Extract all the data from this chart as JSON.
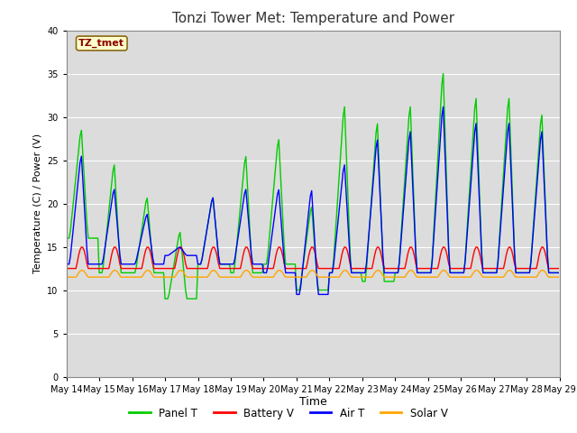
{
  "title": "Tonzi Tower Met: Temperature and Power",
  "xlabel": "Time",
  "ylabel": "Temperature (C) / Power (V)",
  "ylim": [
    0,
    40
  ],
  "yticks": [
    0,
    5,
    10,
    15,
    20,
    25,
    30,
    35,
    40
  ],
  "annotation": "TZ_tmet",
  "annotation_color": "#8B0000",
  "annotation_bg": "#FFFFCC",
  "annotation_edge": "#8B6914",
  "x_tick_labels": [
    "May 14",
    "May 15",
    "May 16",
    "May 17",
    "May 18",
    "May 19",
    "May 20",
    "May 21",
    "May 22",
    "May 23",
    "May 24",
    "May 25",
    "May 26",
    "May 27",
    "May 28",
    "May 29"
  ],
  "panel_T_color": "#00CC00",
  "battery_V_color": "#FF0000",
  "air_T_color": "#0000FF",
  "solar_V_color": "#FFA500",
  "fig_bg_color": "#FFFFFF",
  "plot_bg_color": "#DCDCDC",
  "grid_color": "#FFFFFF",
  "line_width": 1.0,
  "panel_T_peaks": [
    29,
    25,
    21,
    17,
    21,
    26,
    28,
    20,
    32,
    30,
    32,
    36,
    33,
    33,
    31
  ],
  "panel_T_troughs": [
    16,
    12,
    12,
    9,
    13,
    12,
    13,
    10,
    12,
    11,
    12,
    12,
    12,
    12,
    12
  ],
  "air_T_peaks": [
    26,
    22,
    19,
    15,
    21,
    22,
    22,
    22,
    25,
    28,
    29,
    32,
    30,
    30,
    29
  ],
  "air_T_troughs": [
    13,
    13,
    13,
    14,
    13,
    13,
    12,
    9.5,
    12,
    12,
    12,
    12,
    12,
    12,
    12
  ],
  "battery_base": 12.5,
  "battery_bump": 2.5,
  "solar_base": 11.5,
  "solar_bump": 0.8,
  "n_days": 15,
  "n_per_day": 24
}
